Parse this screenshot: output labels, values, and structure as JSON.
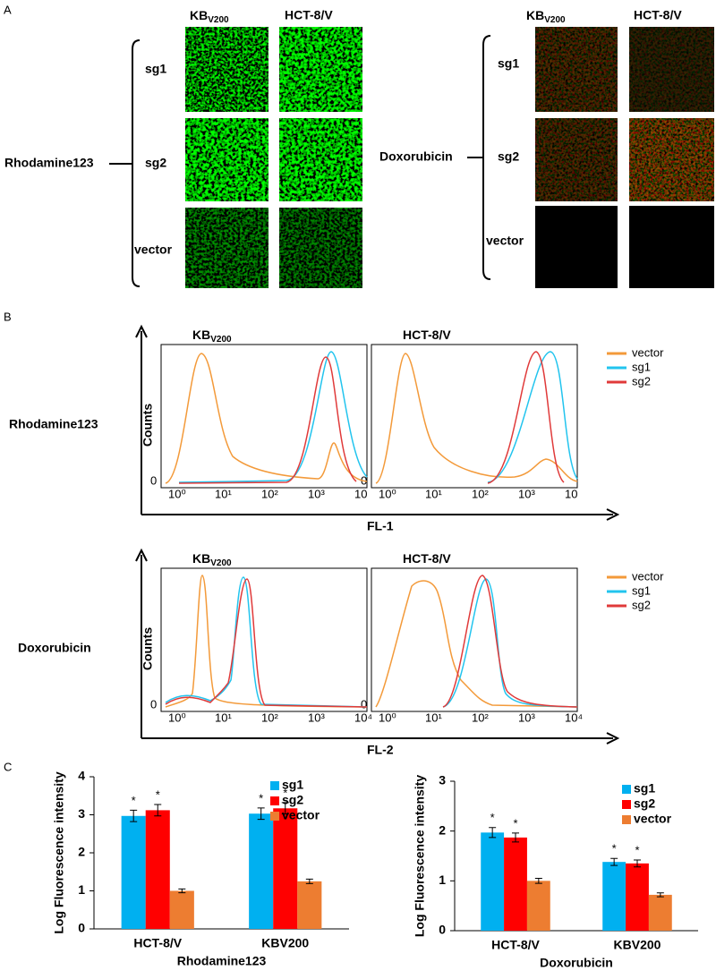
{
  "panel_a": {
    "label": "A",
    "left": {
      "stain": "Rhodamine123",
      "columns": [
        {
          "main": "KB",
          "sub": "V200"
        },
        {
          "main": "HCT-8/V"
        }
      ],
      "rows": [
        "sg1",
        "sg2",
        "vector"
      ]
    },
    "right": {
      "stain": "Doxorubicin",
      "columns": [
        {
          "main": "KB",
          "sub": "V200"
        },
        {
          "main": "HCT-8/V"
        }
      ],
      "rows": [
        "sg1",
        "sg2",
        "vector"
      ]
    }
  },
  "panel_b": {
    "label": "B",
    "rows": [
      {
        "stain": "Rhodamine123",
        "x_label": "FL-1",
        "y_label": "Counts",
        "origin": "0",
        "titles": [
          {
            "main": "KB",
            "sub": "V200"
          },
          {
            "main": "HCT-8/V"
          }
        ],
        "xticks": [
          "10⁰",
          "10¹",
          "10²",
          "10³",
          "10"
        ],
        "legend": [
          "vector",
          "sg1",
          "sg2"
        ]
      },
      {
        "stain": "Doxorubicin",
        "x_label": "FL-2",
        "y_label": "Counts",
        "origin": "0",
        "titles": [
          {
            "main": "KB",
            "sub": "V200"
          },
          {
            "main": "HCT-8/V"
          }
        ],
        "xticks": [
          "10⁰",
          "10¹",
          "10²",
          "10³",
          "10⁴"
        ],
        "legend": [
          "vector",
          "sg1",
          "sg2"
        ]
      }
    ]
  },
  "panel_c": {
    "label": "C"
  },
  "chart_data": [
    {
      "type": "bar",
      "y_label": "Log Fluorescence intensity",
      "x_label": "Rhodamine123",
      "categories": [
        "HCT-8/V",
        "KBV200"
      ],
      "ylim": [
        0,
        4
      ],
      "yticks": [
        0,
        1,
        2,
        3,
        4
      ],
      "legend": "top-right",
      "series": [
        {
          "name": "sg1",
          "color": "#00b0f0",
          "values": [
            2.97,
            3.03
          ],
          "errors": [
            0.15,
            0.15
          ],
          "markers": [
            "*",
            "*"
          ]
        },
        {
          "name": "sg2",
          "color": "#ff0000",
          "values": [
            3.12,
            3.17
          ],
          "errors": [
            0.15,
            0.15
          ],
          "markers": [
            "*",
            "*"
          ]
        },
        {
          "name": "vector",
          "color": "#ed7d31",
          "values": [
            1.0,
            1.25
          ],
          "errors": [
            0.05,
            0.06
          ]
        }
      ]
    },
    {
      "type": "bar",
      "y_label": "Log Fluorescence intensity",
      "x_label": "Doxorubicin",
      "categories": [
        "HCT-8/V",
        "KBV200"
      ],
      "ylim": [
        0,
        3
      ],
      "yticks": [
        0,
        1,
        2,
        3
      ],
      "legend": "top-right",
      "series": [
        {
          "name": "sg1",
          "color": "#00b0f0",
          "values": [
            1.97,
            1.38
          ],
          "errors": [
            0.1,
            0.07
          ],
          "markers": [
            "*",
            "*"
          ]
        },
        {
          "name": "sg2",
          "color": "#ff0000",
          "values": [
            1.87,
            1.35
          ],
          "errors": [
            0.09,
            0.07
          ],
          "markers": [
            "*",
            "*"
          ]
        },
        {
          "name": "vector",
          "color": "#ed7d31",
          "values": [
            1.0,
            0.72
          ],
          "errors": [
            0.05,
            0.04
          ]
        }
      ]
    }
  ]
}
